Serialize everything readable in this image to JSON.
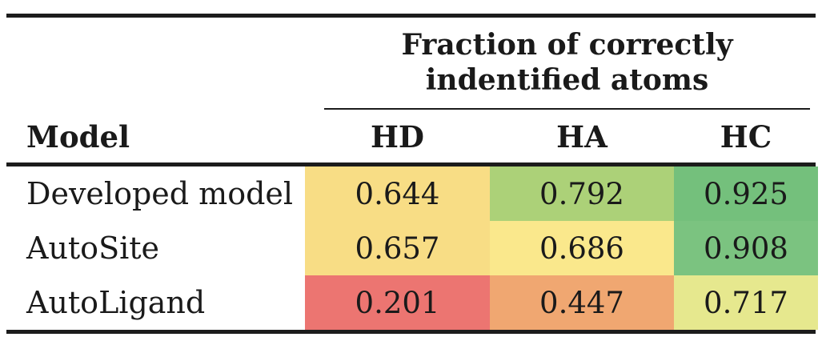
{
  "page": {
    "background": "#ffffff",
    "text_color": "#1a1a1a",
    "rule_color": "#1c1c1c"
  },
  "table": {
    "group_header": {
      "line1": "Fraction of correctly",
      "line2": "indentified atoms"
    },
    "model_column_header": "Model",
    "metric_headers": [
      "HD",
      "HA",
      "HC"
    ],
    "rows": [
      {
        "model": "Developed model",
        "values": [
          "0.644",
          "0.792",
          "0.925"
        ],
        "colors": [
          "#f8dd85",
          "#acd178",
          "#74c07c"
        ]
      },
      {
        "model": "AutoSite",
        "values": [
          "0.657",
          "0.686",
          "0.908"
        ],
        "colors": [
          "#f8dd85",
          "#fae88c",
          "#7bc380"
        ]
      },
      {
        "model": "AutoLigand",
        "values": [
          "0.201",
          "0.447",
          "0.717"
        ],
        "colors": [
          "#ec7571",
          "#f0a771",
          "#e6e88e"
        ]
      }
    ]
  },
  "chart_data": {
    "type": "table",
    "title": "Fraction of correctly indentified atoms",
    "columns": [
      "Model",
      "HD",
      "HA",
      "HC"
    ],
    "rows": [
      [
        "Developed model",
        0.644,
        0.792,
        0.925
      ],
      [
        "AutoSite",
        0.657,
        0.686,
        0.908
      ],
      [
        "AutoLigand",
        0.201,
        0.447,
        0.717
      ]
    ],
    "cell_colors": [
      [
        "#f8dd85",
        "#acd178",
        "#74c07c"
      ],
      [
        "#f8dd85",
        "#fae88c",
        "#7bc380"
      ],
      [
        "#ec7571",
        "#f0a771",
        "#e6e88e"
      ]
    ],
    "color_scale": "red-yellow-green heatmap (low to high)"
  }
}
